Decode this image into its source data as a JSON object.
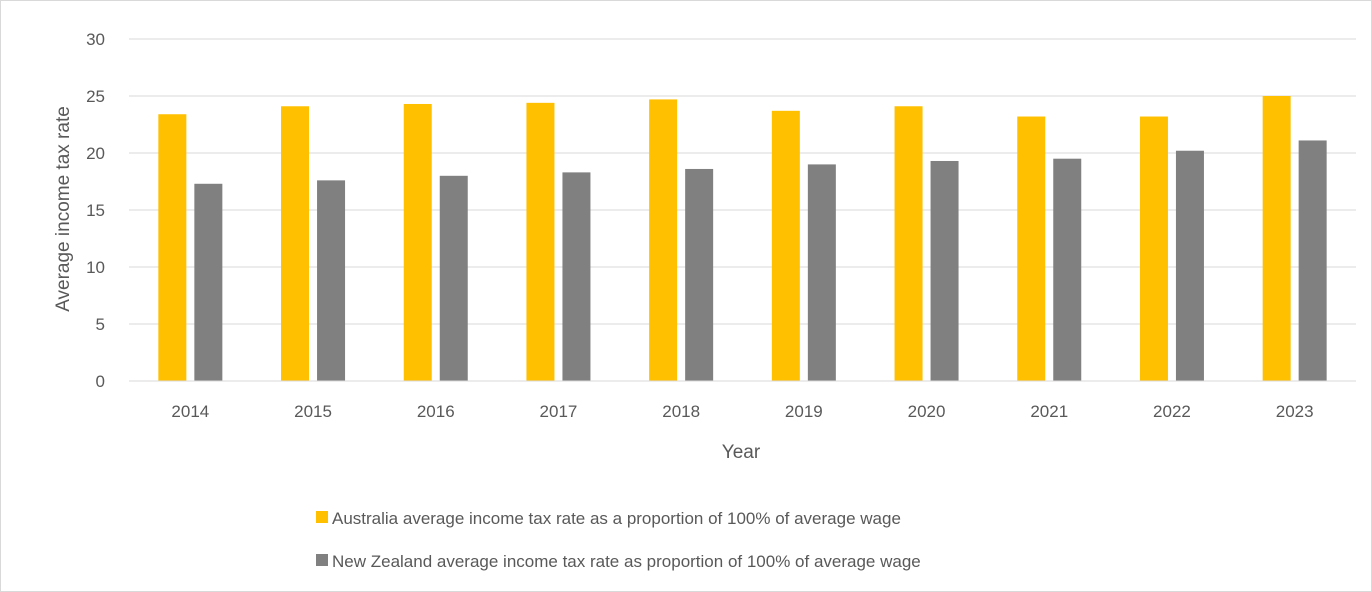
{
  "chart_data": {
    "type": "bar",
    "title": "",
    "xlabel": "Year",
    "ylabel": "Average income tax rate",
    "ylim": [
      0,
      30
    ],
    "yticks": [
      0,
      5,
      10,
      15,
      20,
      25,
      30
    ],
    "grid": true,
    "legend_position": "bottom",
    "categories": [
      "2014",
      "2015",
      "2016",
      "2017",
      "2018",
      "2019",
      "2020",
      "2021",
      "2022",
      "2023"
    ],
    "series": [
      {
        "name": "Australia average income tax rate as a proportion of 100% of average wage",
        "color": "#FFC000",
        "values": [
          23.4,
          24.1,
          24.3,
          24.4,
          24.7,
          23.7,
          24.1,
          23.2,
          23.2,
          25.0
        ]
      },
      {
        "name": "New Zealand average income tax rate as proportion of 100% of average wage",
        "color": "#808080",
        "values": [
          17.3,
          17.6,
          18.0,
          18.3,
          18.6,
          19.0,
          19.3,
          19.5,
          20.2,
          21.1
        ]
      }
    ]
  }
}
